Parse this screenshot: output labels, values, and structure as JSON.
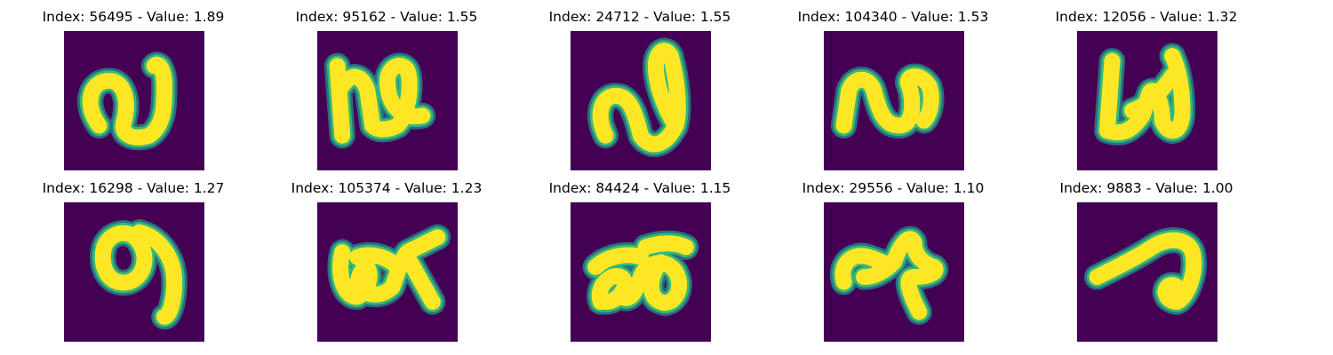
{
  "colors": {
    "background": "#440154",
    "stroke": "#fde725",
    "edge": "#35b779",
    "edge_outer": "#21918c"
  },
  "panels": [
    {
      "index": "56495",
      "value": "1.89",
      "title": "Index: 56495 - Value: 1.89",
      "glyph": "glyph-1"
    },
    {
      "index": "95162",
      "value": "1.55",
      "title": "Index: 95162 - Value: 1.55",
      "glyph": "glyph-2"
    },
    {
      "index": "24712",
      "value": "1.55",
      "title": "Index: 24712 - Value: 1.55",
      "glyph": "glyph-3"
    },
    {
      "index": "104340",
      "value": "1.53",
      "title": "Index: 104340 - Value: 1.53",
      "glyph": "glyph-4"
    },
    {
      "index": "12056",
      "value": "1.32",
      "title": "Index: 12056 - Value: 1.32",
      "glyph": "glyph-5"
    },
    {
      "index": "16298",
      "value": "1.27",
      "title": "Index: 16298 - Value: 1.27",
      "glyph": "glyph-6"
    },
    {
      "index": "105374",
      "value": "1.23",
      "title": "Index: 105374 - Value: 1.23",
      "glyph": "glyph-7"
    },
    {
      "index": "84424",
      "value": "1.15",
      "title": "Index: 84424 - Value: 1.15",
      "glyph": "glyph-8"
    },
    {
      "index": "29556",
      "value": "1.10",
      "title": "Index: 29556 - Value: 1.10",
      "glyph": "glyph-9"
    },
    {
      "index": "9883",
      "value": "1.00",
      "title": "Index: 9883 - Value: 1.00",
      "glyph": "glyph-10"
    }
  ]
}
